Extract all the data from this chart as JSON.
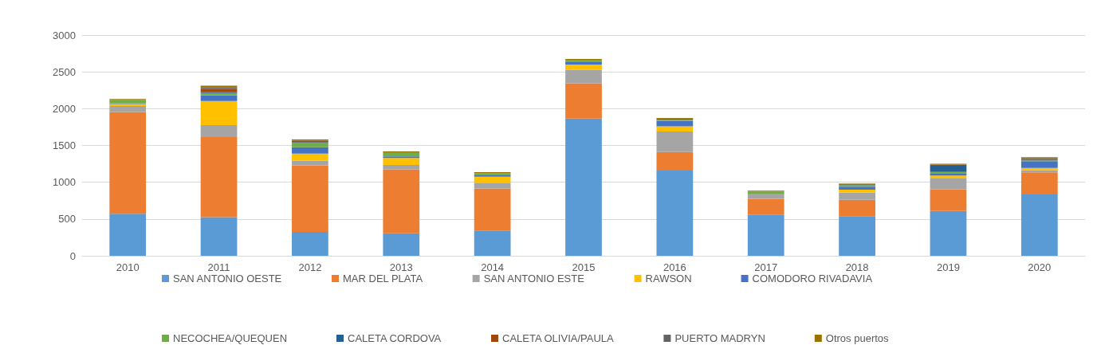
{
  "chart_data": {
    "type": "bar",
    "stacked": true,
    "categories": [
      "2010",
      "2011",
      "2012",
      "2013",
      "2014",
      "2015",
      "2016",
      "2017",
      "2018",
      "2019",
      "2020"
    ],
    "series": [
      {
        "name": "SAN ANTONIO OESTE",
        "color": "#5b9bd5",
        "values": [
          570,
          525,
          325,
          305,
          345,
          1865,
          1160,
          560,
          540,
          610,
          835
        ]
      },
      {
        "name": "MAR DEL PLATA",
        "color": "#ed7d31",
        "values": [
          1385,
          1090,
          905,
          870,
          570,
          480,
          250,
          215,
          220,
          295,
          300
        ]
      },
      {
        "name": "SAN ANTONIO ESTE",
        "color": "#a5a5a5",
        "values": [
          80,
          160,
          65,
          60,
          70,
          185,
          280,
          60,
          100,
          155,
          30
        ]
      },
      {
        "name": "RAWSON",
        "color": "#ffc000",
        "values": [
          27,
          330,
          95,
          95,
          90,
          70,
          70,
          0,
          40,
          30,
          30
        ]
      },
      {
        "name": "COMODORO RIVADAVIA",
        "color": "#4472c4",
        "values": [
          10,
          75,
          85,
          20,
          20,
          40,
          75,
          5,
          40,
          35,
          90
        ]
      },
      {
        "name": "NECOCHEA/QUEQUEN",
        "color": "#70ad47",
        "values": [
          44,
          33,
          60,
          50,
          27,
          25,
          15,
          35,
          20,
          15,
          17
        ]
      },
      {
        "name": "CALETA CORDOVA",
        "color": "#255e91",
        "values": [
          0,
          10,
          10,
          0,
          0,
          0,
          0,
          0,
          13,
          85,
          0
        ]
      },
      {
        "name": "CALETA OLIVIA/PAULA",
        "color": "#9e480e",
        "values": [
          0,
          45,
          20,
          0,
          0,
          0,
          15,
          0,
          5,
          15,
          0
        ]
      },
      {
        "name": "PUERTO MADRYN",
        "color": "#636363",
        "values": [
          0,
          20,
          null,
          0,
          0,
          0,
          0,
          0,
          0,
          0,
          24
        ]
      },
      {
        "name": "Otros puertos",
        "color": "#997300",
        "values": [
          15,
          25,
          15,
          20,
          15,
          10,
          10,
          10,
          5,
          10,
          14
        ]
      }
    ],
    "ylim": [
      0,
      3000
    ],
    "yticks": [
      0,
      500,
      1000,
      1500,
      2000,
      2500,
      3000
    ],
    "grid": "y",
    "legend": "bottom"
  }
}
